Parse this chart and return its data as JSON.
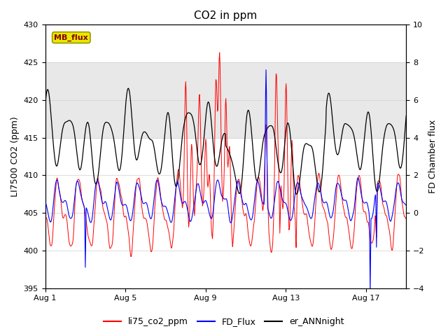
{
  "title": "CO2 in ppm",
  "ylabel_left": "LI7500 CO2 (ppm)",
  "ylabel_right": "FD Chamber flux",
  "ylim_left": [
    395,
    430
  ],
  "ylim_right": [
    -4,
    10
  ],
  "yticks_left": [
    395,
    400,
    405,
    410,
    415,
    420,
    425,
    430
  ],
  "yticks_right": [
    -4,
    -2,
    0,
    2,
    4,
    6,
    8,
    10
  ],
  "xtick_labels": [
    "Aug 1",
    "Aug 5",
    "Aug 9",
    "Aug 13",
    "Aug 17"
  ],
  "xtick_positions": [
    0,
    4,
    8,
    12,
    16
  ],
  "shaded_region": [
    415,
    425
  ],
  "legend_labels": [
    "li75_co2_ppm",
    "FD_Flux",
    "er_ANNnight"
  ],
  "legend_colors": [
    "#ff0000",
    "#0000ff",
    "#000000"
  ],
  "line_colors": {
    "li75_co2_ppm": "#ff0000",
    "FD_Flux": "#0000ff",
    "er_ANNnight": "#000000"
  },
  "MB_flux_box_facecolor": "#e8e800",
  "MB_flux_box_edgecolor": "#999900",
  "MB_flux_text_color": "#880000",
  "background_color": "#ffffff",
  "grid_color": "#d0d0d0",
  "shaded_band_color": "#e8e8e8",
  "title_fontsize": 11,
  "axis_fontsize": 9,
  "tick_fontsize": 8,
  "legend_fontsize": 9,
  "n_days": 18,
  "n_per_day": 48
}
